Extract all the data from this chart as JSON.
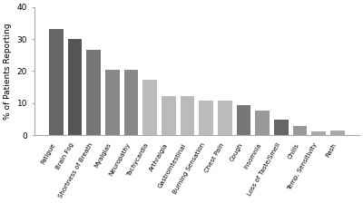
{
  "categories": [
    "Fatigue",
    "Brain Fog",
    "Shortness of Breath",
    "Myalgias",
    "Neuropathy",
    "Tachycardia",
    "Arthralgia",
    "Gastrointestinal",
    "Burning Sensation",
    "Chest Pain",
    "Cough",
    "Insomnia",
    "Loss of Taste/Smell",
    "Chills",
    "Temp. Sensitivity",
    "Rash"
  ],
  "values": [
    33,
    30,
    26.7,
    20.3,
    20.3,
    17.3,
    12.3,
    12.3,
    10.8,
    10.8,
    9.3,
    7.8,
    4.8,
    3.0,
    1.3,
    1.5
  ],
  "bar_colors": [
    "#666666",
    "#555555",
    "#777777",
    "#888888",
    "#888888",
    "#bbbbbb",
    "#bbbbbb",
    "#bbbbbb",
    "#bbbbbb",
    "#bbbbbb",
    "#777777",
    "#999999",
    "#666666",
    "#999999",
    "#aaaaaa",
    "#aaaaaa"
  ],
  "ylabel": "% of Patients Reporting",
  "ylim": [
    0,
    40
  ],
  "yticks": [
    0,
    10,
    20,
    30,
    40
  ],
  "background_color": "#ffffff",
  "bar_edge_color": "none",
  "tick_label_fontsize": 5.0,
  "ylabel_fontsize": 6.5,
  "ytick_fontsize": 6.5,
  "label_rotation": 60
}
